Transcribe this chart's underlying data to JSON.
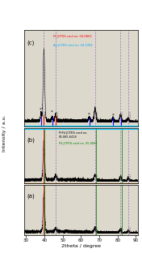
{
  "xlabel": "2theta / degree",
  "ylabel": "Intensity / a.u.",
  "xlim": [
    29,
    91
  ],
  "bg_color": "#e8e0d0",
  "dashed_lines": [
    39.8,
    46.2,
    67.7,
    81.6,
    85.8
  ],
  "red_lines_c": [
    39.76,
    46.24
  ],
  "blue_lines_c": [
    38.2,
    44.4,
    64.6,
    77.5,
    81.7
  ],
  "red_line_b": 39.76,
  "green_lines_b": [
    40.1,
    68.1,
    82.1
  ],
  "red_lines_a": [
    39.76
  ],
  "green_lines_a": [
    40.1,
    68.1,
    82.1
  ],
  "separator_color_top_b": "#00bfff",
  "separator_color_bot_b": "#cd8b3a",
  "annotation_c1": "Pt JCPDS card no. 04-0802",
  "annotation_c2": "Au JCPDS card no. 04-0784",
  "annotation_b1": "PtPd JCPDS card no.\n03-065-6418",
  "annotation_b2": "Pd JCPDS card no. 05-0681",
  "label_a": "(a)",
  "label_b": "(b)",
  "label_c": "(c)"
}
